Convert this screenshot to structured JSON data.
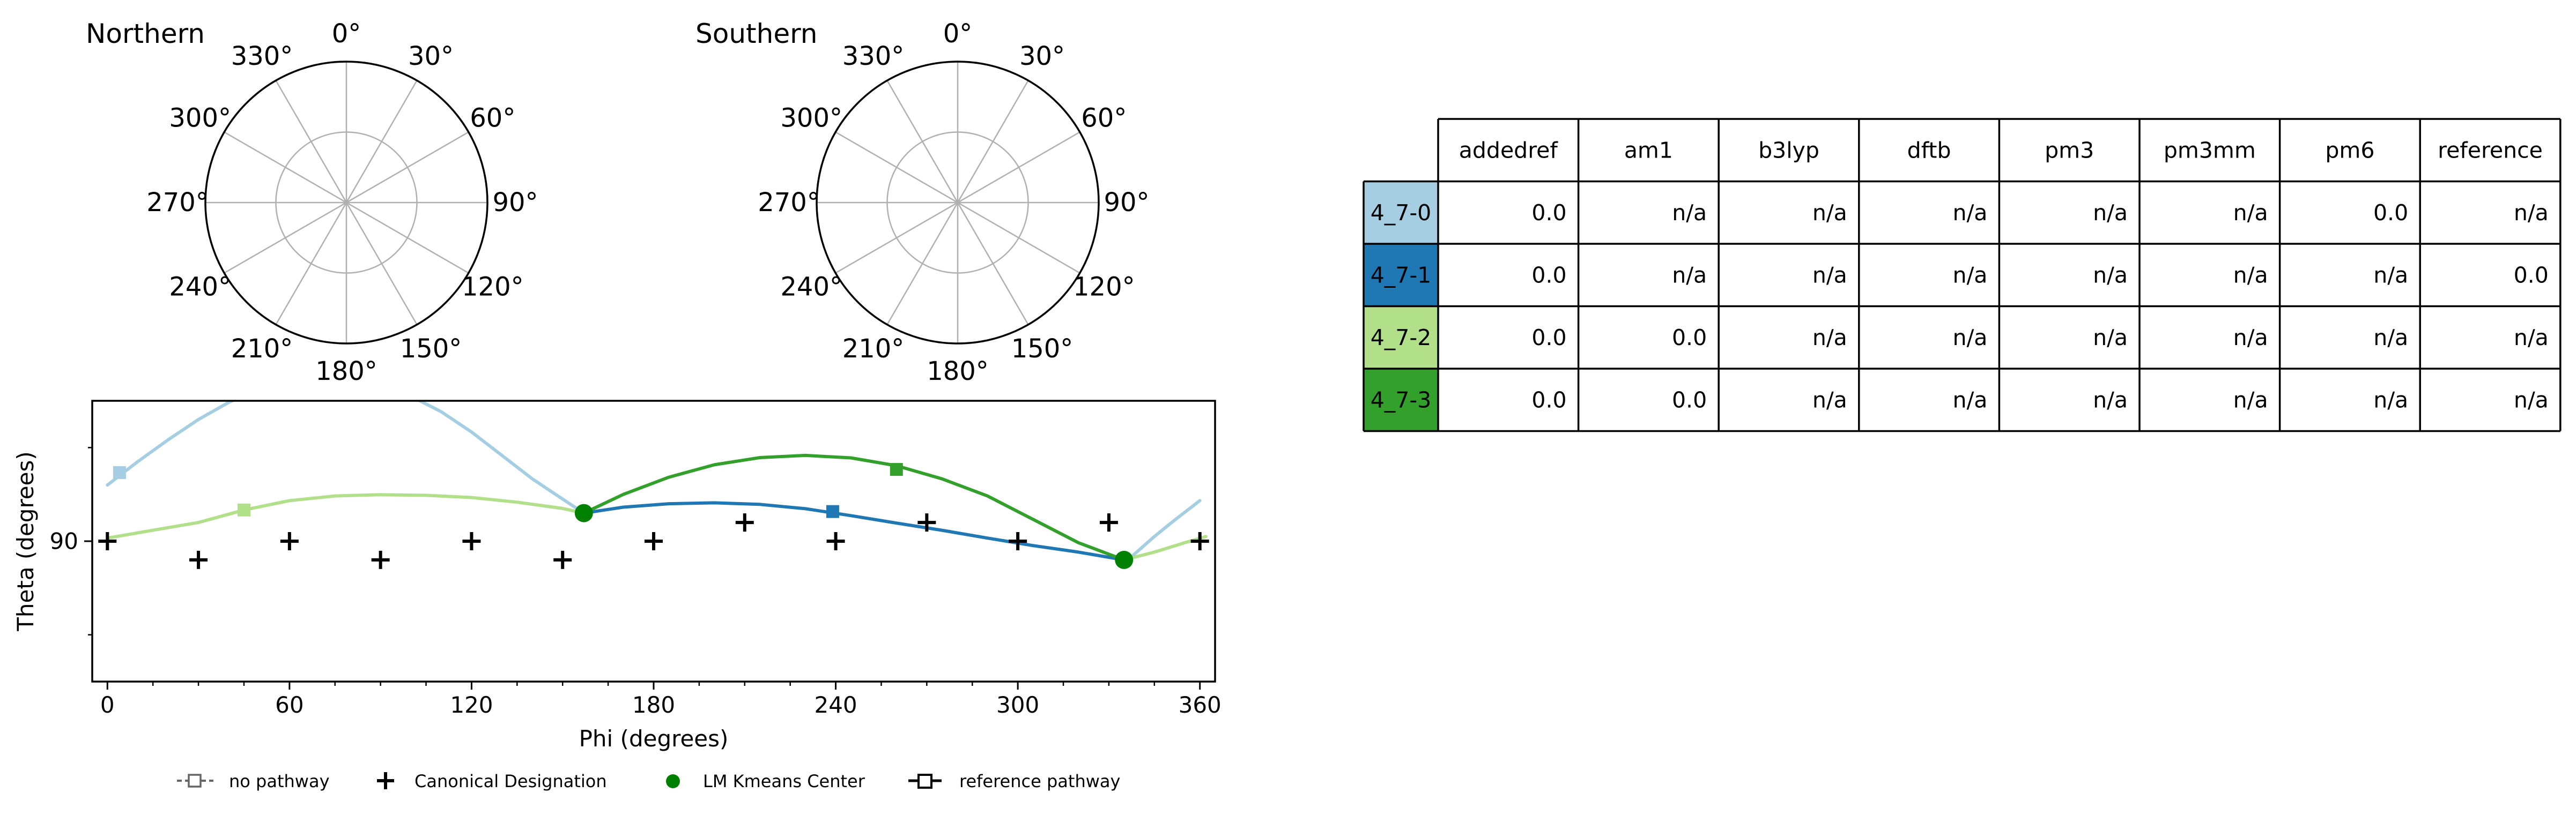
{
  "polar_plots": [
    {
      "title": "Northern",
      "angle_labels": [
        "0°",
        "30°",
        "60°",
        "90°",
        "120°",
        "150°",
        "180°",
        "210°",
        "240°",
        "270°",
        "300°",
        "330°"
      ]
    },
    {
      "title": "Southern",
      "angle_labels": [
        "0°",
        "30°",
        "60°",
        "90°",
        "120°",
        "150°",
        "180°",
        "210°",
        "240°",
        "270°",
        "300°",
        "330°"
      ]
    }
  ],
  "chart_data": {
    "type": "line",
    "xlabel": "Phi (degrees)",
    "ylabel": "Theta (degrees)",
    "xlim": [
      -5,
      365
    ],
    "ylim": [
      45,
      135
    ],
    "x_ticks": [
      0,
      60,
      120,
      180,
      240,
      300,
      360
    ],
    "x_tick_labels": [
      "0",
      "60",
      "120",
      "180",
      "240",
      "300",
      "360"
    ],
    "y_ticks": [
      90
    ],
    "y_tick_labels": [
      "90"
    ],
    "grid": false,
    "series": [
      {
        "color": "#a6cee3",
        "x": [
          0,
          10,
          20,
          30,
          40,
          50,
          60,
          70,
          80,
          90,
          100,
          110,
          120,
          130,
          140,
          150,
          157
        ],
        "y": [
          108.0,
          115.5,
          122.5,
          129.0,
          134.5,
          139.0,
          141.5,
          142.5,
          142.0,
          140.0,
          136.5,
          131.5,
          125.0,
          117.5,
          110.0,
          103.5,
          99.0
        ],
        "x2": [
          338,
          345,
          352,
          360
        ],
        "y2": [
          85.5,
          91.5,
          97.0,
          103.0
        ],
        "marker": {
          "x": 4,
          "y": 112.0
        }
      },
      {
        "color": "#1f78b4",
        "x": [
          157,
          170,
          185,
          200,
          215,
          230,
          245,
          260,
          275,
          290,
          305,
          320,
          335
        ],
        "y": [
          99.0,
          100.9,
          102.0,
          102.3,
          101.8,
          100.4,
          98.2,
          95.8,
          93.5,
          91.0,
          88.6,
          86.5,
          84.0
        ],
        "marker": {
          "x": 239,
          "y": 99.5
        }
      },
      {
        "color": "#b2df8a",
        "x": [
          0,
          15,
          30,
          45,
          60,
          75,
          90,
          105,
          120,
          135,
          150,
          157
        ],
        "y": [
          91.0,
          93.5,
          96.0,
          100.0,
          103.0,
          104.5,
          104.9,
          104.7,
          104.0,
          102.5,
          100.5,
          99.0
        ],
        "x2": [
          335,
          345,
          355,
          362
        ],
        "y2": [
          84.0,
          86.5,
          89.5,
          91.5
        ],
        "marker": {
          "x": 45,
          "y": 100.0
        }
      },
      {
        "color": "#33a02c",
        "x": [
          157,
          170,
          185,
          200,
          215,
          230,
          245,
          260,
          275,
          290,
          305,
          320,
          335
        ],
        "y": [
          99.0,
          105.0,
          110.5,
          114.5,
          116.8,
          117.5,
          116.7,
          114.2,
          110.0,
          104.5,
          97.0,
          89.5,
          84.0
        ],
        "marker": {
          "x": 260,
          "y": 113.0
        }
      }
    ],
    "kmeans_centers": {
      "x": [
        157,
        335
      ],
      "y": [
        99.0,
        84.0
      ],
      "color": "#008000"
    },
    "canonical": {
      "x": [
        0,
        30,
        60,
        90,
        120,
        150,
        180,
        210,
        240,
        270,
        300,
        330,
        360
      ],
      "y": [
        90,
        84,
        90,
        84,
        90,
        84,
        90,
        96,
        90,
        96,
        90,
        96,
        90
      ]
    },
    "legend": {
      "position": "bottom",
      "items": [
        {
          "label": "no pathway",
          "icon": "dashed-square-marker"
        },
        {
          "label": "Canonical Designation",
          "icon": "plus-marker"
        },
        {
          "label": "LM Kmeans Center",
          "icon": "dot-marker"
        },
        {
          "label": "reference pathway",
          "icon": "line-square-marker"
        }
      ]
    }
  },
  "table": {
    "columns": [
      "addedref",
      "am1",
      "b3lyp",
      "dftb",
      "pm3",
      "pm3mm",
      "pm6",
      "reference"
    ],
    "rows": [
      {
        "label": "4_7-0",
        "color": "#a6cee3",
        "values": [
          "0.0",
          "n/a",
          "n/a",
          "n/a",
          "n/a",
          "n/a",
          "0.0",
          "n/a"
        ]
      },
      {
        "label": "4_7-1",
        "color": "#1f78b4",
        "values": [
          "0.0",
          "n/a",
          "n/a",
          "n/a",
          "n/a",
          "n/a",
          "n/a",
          "0.0"
        ]
      },
      {
        "label": "4_7-2",
        "color": "#b2df8a",
        "values": [
          "0.0",
          "0.0",
          "n/a",
          "n/a",
          "n/a",
          "n/a",
          "n/a",
          "n/a"
        ]
      },
      {
        "label": "4_7-3",
        "color": "#33a02c",
        "values": [
          "0.0",
          "0.0",
          "n/a",
          "n/a",
          "n/a",
          "n/a",
          "n/a",
          "n/a"
        ]
      }
    ]
  }
}
